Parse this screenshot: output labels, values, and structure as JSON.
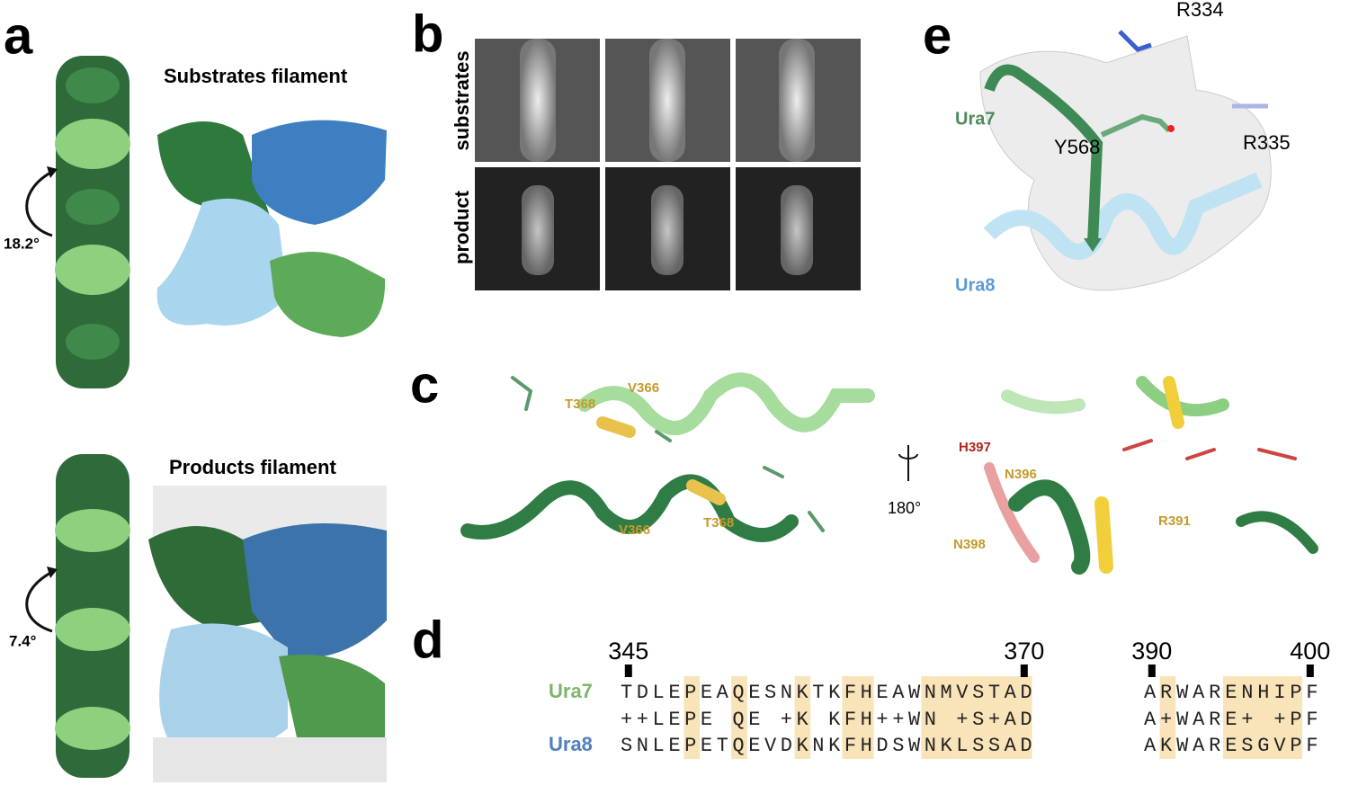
{
  "panels": {
    "a": {
      "label": "a",
      "substrates_title": "Substrates filament",
      "substrates_angle": "18.2°",
      "products_title": "Products filament",
      "products_angle": "7.4°"
    },
    "b": {
      "label": "b",
      "row_labels": [
        "substrates",
        "product"
      ]
    },
    "c": {
      "label": "c",
      "left_residues": [
        "T368",
        "V366",
        "V366",
        "T368"
      ],
      "right_residues": [
        "H397",
        "N396",
        "N398",
        "R391"
      ],
      "rotation": "180°"
    },
    "d": {
      "label": "d",
      "sequence_names": [
        "Ura7",
        "Ura8"
      ],
      "blocks": [
        {
          "ticks": [
            345,
            370
          ],
          "rows": [
            "TDLEPEAQESNKTKFHEAWNMVSTAD",
            "++LEPE QE +K KFH++WN +S+AD",
            "SNLEPETQEVDKNKFHDSWNKLSSAD"
          ]
        },
        {
          "ticks": [
            390,
            400
          ],
          "rows": [
            "ARWARENHIPF",
            "A+WARE+ +PF",
            "AKWARESGVPF"
          ]
        }
      ]
    },
    "e": {
      "label": "e",
      "residues": [
        "R334",
        "Y568",
        "R335"
      ],
      "chains": [
        "Ura7",
        "Ura8"
      ]
    }
  }
}
